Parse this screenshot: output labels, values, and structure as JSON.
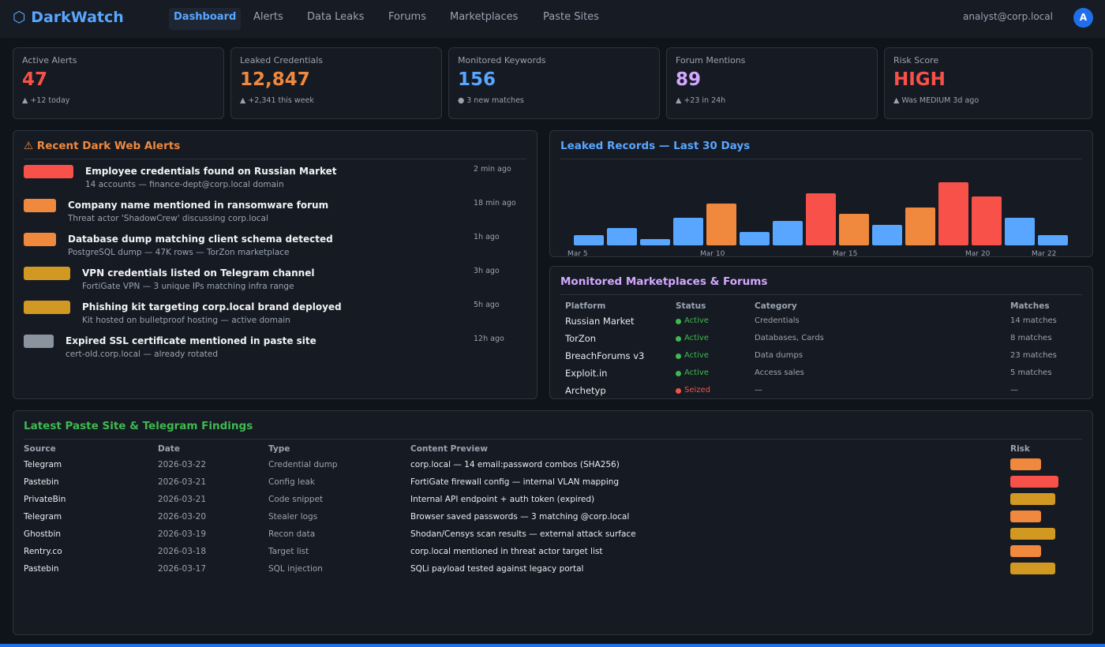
{
  "nav": {
    "brand": "⬡ DarkWatch",
    "items": [
      "Dashboard",
      "Alerts",
      "Data Leaks",
      "Forums",
      "Marketplaces",
      "Paste Sites"
    ],
    "user": "analyst@corp.local",
    "avatar": "A"
  },
  "kpis": [
    {
      "label": "Active Alerts",
      "value": "47",
      "note": "▲ +12 today",
      "color": "#f85149"
    },
    {
      "label": "Leaked Credentials",
      "value": "12,847",
      "note": "▲ +2,341 this week",
      "color": "#f0883e"
    },
    {
      "label": "Monitored Keywords",
      "value": "156",
      "note": "● 3 new matches",
      "color": "#58a6ff"
    },
    {
      "label": "Forum Mentions",
      "value": "89",
      "note": "▲ +23 in 24h",
      "color": "#d2a8ff"
    },
    {
      "label": "Risk Score",
      "value": "HIGH",
      "note": "▲ Was MEDIUM 3d ago",
      "color": "#f85149"
    }
  ],
  "alerts": {
    "title": "⚠ Recent Dark Web Alerts",
    "items": [
      {
        "title": "Employee credentials found on Russian Market",
        "detail": "14 accounts — finance-dept@corp.local domain",
        "time": "2 min ago",
        "color": "#f85149"
      },
      {
        "title": "Company name mentioned in ransomware forum",
        "detail": "Threat actor 'ShadowCrew' discussing corp.local",
        "time": "18 min ago",
        "color": "#f0883e"
      },
      {
        "title": "Database dump matching client schema detected",
        "detail": "PostgreSQL dump — 47K rows — TorZon marketplace",
        "time": "1h ago",
        "color": "#f0883e"
      },
      {
        "title": "VPN credentials listed on Telegram channel",
        "detail": "FortiGate VPN — 3 unique IPs matching infra range",
        "time": "3h ago",
        "color": "#d29922"
      },
      {
        "title": "Phishing kit targeting corp.local brand deployed",
        "detail": "Kit hosted on bulletproof hosting — active domain",
        "time": "5h ago",
        "color": "#d29922"
      },
      {
        "title": "Expired SSL certificate mentioned in paste site",
        "detail": "cert-old.corp.local — already rotated",
        "time": "12h ago",
        "color": "#8b949e"
      }
    ]
  },
  "chart_data": {
    "type": "bar",
    "title": "Leaked Records — Last 30 Days",
    "categories": [
      "Mar 5",
      null,
      null,
      null,
      "Mar 10",
      null,
      null,
      null,
      "Mar 15",
      null,
      null,
      null,
      "Mar 20",
      null,
      "Mar 22"
    ],
    "values": [
      13,
      22,
      8,
      35,
      53,
      17,
      31,
      66,
      40,
      26,
      48,
      80,
      62,
      35,
      13
    ],
    "colors": [
      "#58a6ff",
      "#58a6ff",
      "#58a6ff",
      "#58a6ff",
      "#f0883e",
      "#58a6ff",
      "#58a6ff",
      "#f85149",
      "#f0883e",
      "#58a6ff",
      "#f0883e",
      "#f85149",
      "#f85149",
      "#58a6ff",
      "#58a6ff"
    ]
  },
  "markets": {
    "title": "Monitored Marketplaces & Forums",
    "columns": [
      "Platform",
      "Status",
      "Category",
      "Matches"
    ],
    "rows": [
      [
        "Russian Market",
        "Active",
        "Credentials",
        "14 matches"
      ],
      [
        "TorZon",
        "Active",
        "Databases, Cards",
        "8 matches"
      ],
      [
        "BreachForums v3",
        "Active",
        "Data dumps",
        "23 matches"
      ],
      [
        "Exploit.in",
        "Active",
        "Access sales",
        "5 matches"
      ],
      [
        "Archetyp",
        "Seized",
        "—",
        "—"
      ]
    ],
    "status_colors": [
      "#3fb950",
      "#3fb950",
      "#3fb950",
      "#3fb950",
      "#f85149"
    ]
  },
  "findings": {
    "title": "Latest Paste Site & Telegram Findings",
    "columns": [
      "Source",
      "Date",
      "Type",
      "Content Preview",
      "Risk"
    ],
    "rows": [
      [
        "Telegram",
        "2026-03-22",
        "Credential dump",
        "corp.local — 14 email:password combos (SHA256)"
      ],
      [
        "Pastebin",
        "2026-03-21",
        "Config leak",
        "FortiGate firewall config — internal VLAN mapping"
      ],
      [
        "PrivateBin",
        "2026-03-21",
        "Code snippet",
        "Internal API endpoint + auth token (expired)"
      ],
      [
        "Telegram",
        "2026-03-20",
        "Stealer logs",
        "Browser saved passwords — 3 matching @corp.local"
      ],
      [
        "Ghostbin",
        "2026-03-19",
        "Recon data",
        "Shodan/Censys scan results — external attack surface"
      ],
      [
        "Rentry.co",
        "2026-03-18",
        "Target list",
        "corp.local mentioned in threat actor target list"
      ],
      [
        "Pastebin",
        "2026-03-17",
        "SQL injection",
        "SQLi payload tested against legacy portal"
      ]
    ],
    "risk_colors": [
      "#f0883e",
      "#f85149",
      "#d29922",
      "#f0883e",
      "#d29922",
      "#f0883e",
      "#d29922"
    ]
  }
}
